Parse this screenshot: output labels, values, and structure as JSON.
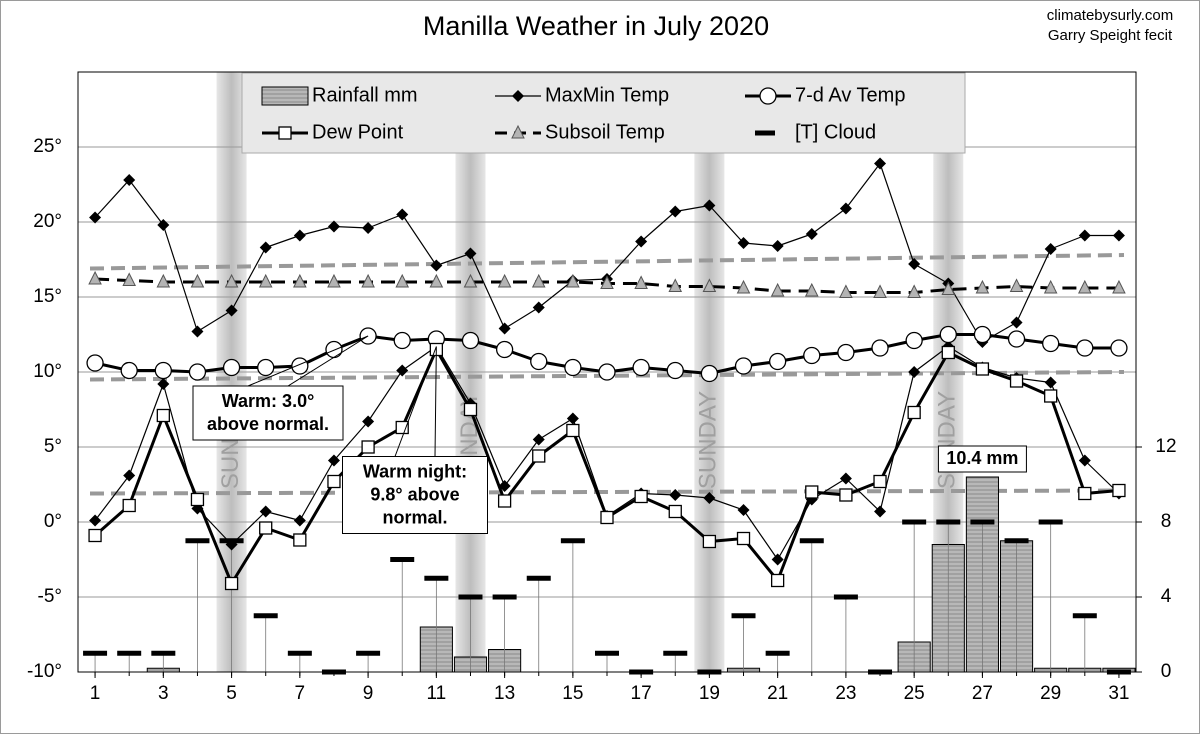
{
  "chart_data": {
    "type": "combo",
    "title": "Manilla Weather in July 2020",
    "credits": [
      "climatebysurly.com",
      "Garry Speight fecit"
    ],
    "x": [
      1,
      2,
      3,
      4,
      5,
      6,
      7,
      8,
      9,
      10,
      11,
      12,
      13,
      14,
      15,
      16,
      17,
      18,
      19,
      20,
      21,
      22,
      23,
      24,
      25,
      26,
      27,
      28,
      29,
      30,
      31
    ],
    "xlim": [
      0.5,
      31.5
    ],
    "xticks": [
      1,
      3,
      5,
      7,
      9,
      11,
      13,
      15,
      17,
      19,
      21,
      23,
      25,
      27,
      29,
      31
    ],
    "ylim": [
      -10,
      30
    ],
    "yticks": [
      {
        "value": -10,
        "label": "-10°"
      },
      {
        "value": -5,
        "label": "-5°"
      },
      {
        "value": 0,
        "label": "0°"
      },
      {
        "value": 5,
        "label": "5°"
      },
      {
        "value": 10,
        "label": "10°"
      },
      {
        "value": 15,
        "label": "15°"
      },
      {
        "value": 20,
        "label": "20°"
      },
      {
        "value": 25,
        "label": "25°"
      }
    ],
    "y2lim": [
      0,
      32
    ],
    "y2ticks": [
      0,
      4,
      8,
      12
    ],
    "grid": true,
    "sundays": [
      5,
      12,
      19,
      26
    ],
    "sunday_label": "SUNDAY",
    "series": [
      {
        "name": "Rainfall mm",
        "type": "bar",
        "axis": "y2",
        "color": "#a8a8a8",
        "values": [
          0,
          0,
          0.2,
          0,
          0,
          0,
          0,
          0,
          0,
          0,
          2.4,
          0.8,
          1.2,
          0,
          0,
          0,
          0,
          0,
          0,
          0.2,
          0,
          0,
          0,
          0,
          1.6,
          6.8,
          10.4,
          7.0,
          0.2,
          0.2,
          0.2
        ],
        "value_labels": [
          null,
          null,
          null,
          null,
          null,
          null,
          null,
          null,
          null,
          null,
          null,
          null,
          null,
          null,
          null,
          null,
          null,
          null,
          null,
          null,
          null,
          null,
          null,
          null,
          null,
          null,
          "10.4 mm",
          null,
          null,
          null,
          null
        ]
      },
      {
        "name": "MaxMin Temp",
        "type": "line",
        "marker": "diamond",
        "color": "#000000",
        "values": [
          20.3,
          22.8,
          19.8,
          12.7,
          14.1,
          18.3,
          19.1,
          19.7,
          19.6,
          20.5,
          17.1,
          17.9,
          12.9,
          14.3,
          16.1,
          16.2,
          18.7,
          20.7,
          21.1,
          18.6,
          18.4,
          19.2,
          20.9,
          23.9,
          17.2,
          15.9,
          12.0,
          13.3,
          18.2,
          19.1,
          19.1
        ],
        "min_values": [
          0.1,
          3.1,
          9.2,
          0.9,
          -1.5,
          0.7,
          0.1,
          4.1,
          6.7,
          10.1,
          11.7,
          7.9,
          2.4,
          5.5,
          6.9,
          0.4,
          1.9,
          1.8,
          1.6,
          0.8,
          -2.5,
          1.5,
          2.9,
          0.7,
          10.0,
          11.7,
          10.3,
          9.6,
          9.3,
          4.1,
          1.9
        ]
      },
      {
        "name": "7-d Av Temp",
        "type": "line",
        "marker": "circle",
        "color": "#000000",
        "values": [
          10.6,
          10.1,
          10.1,
          10.0,
          10.3,
          10.3,
          10.4,
          11.5,
          12.4,
          12.1,
          12.2,
          12.1,
          11.5,
          10.7,
          10.3,
          10.0,
          10.3,
          10.1,
          9.9,
          10.4,
          10.7,
          11.1,
          11.3,
          11.6,
          12.1,
          12.5,
          12.5,
          12.2,
          11.9,
          11.6,
          11.6
        ]
      },
      {
        "name": "Dew Point",
        "type": "line",
        "marker": "square",
        "color": "#000000",
        "values": [
          -0.9,
          1.1,
          7.1,
          1.5,
          -4.1,
          -0.4,
          -1.2,
          2.7,
          5.0,
          6.3,
          11.5,
          7.5,
          1.4,
          4.4,
          6.1,
          0.3,
          1.7,
          0.7,
          -1.3,
          -1.1,
          -3.9,
          2.0,
          1.8,
          2.7,
          7.3,
          11.3,
          10.2,
          9.4,
          8.4,
          1.9,
          2.1
        ]
      },
      {
        "name": "Subsoil Temp",
        "type": "line",
        "marker": "triangle",
        "color": "#000000",
        "values": [
          16.2,
          16.1,
          16.0,
          16.0,
          16.0,
          16.0,
          16.0,
          16.0,
          16.0,
          16.0,
          16.0,
          16.0,
          16.0,
          16.0,
          16.0,
          15.9,
          15.9,
          15.7,
          15.7,
          15.6,
          15.4,
          15.4,
          15.3,
          15.3,
          15.3,
          15.5,
          15.6,
          15.7,
          15.6,
          15.6,
          15.6
        ]
      },
      {
        "name": "[T] Cloud",
        "type": "dash",
        "axis": "y2",
        "color": "#000000",
        "values": [
          1,
          1,
          1,
          7,
          7,
          3,
          1,
          0,
          1,
          6,
          5,
          4,
          4,
          5,
          7,
          1,
          0,
          1,
          0,
          3,
          1,
          7,
          4,
          0,
          8,
          8,
          8,
          7,
          8,
          3,
          0
        ]
      }
    ],
    "normals": [
      {
        "values": [
          16.9,
          17.8
        ]
      },
      {
        "values": [
          9.5,
          10.0
        ]
      },
      {
        "values": [
          1.9,
          2.1
        ]
      }
    ],
    "annotations": [
      {
        "text": [
          "Warm: 3.0°",
          "above normal."
        ]
      },
      {
        "text": [
          "Warm night:",
          "9.8° above",
          "normal."
        ]
      }
    ]
  }
}
